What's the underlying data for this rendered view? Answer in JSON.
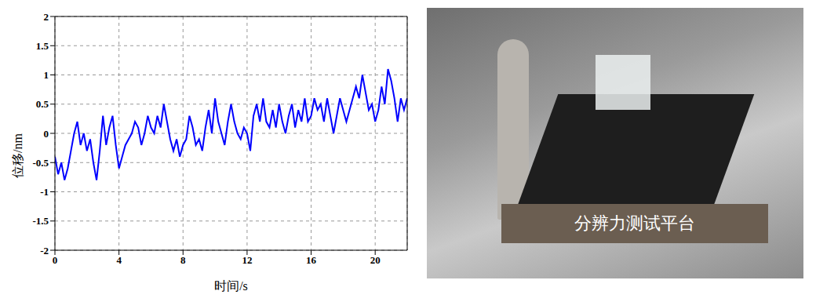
{
  "chart_data": {
    "type": "line",
    "x_label": "时间/s",
    "y_label": "位移/nm",
    "xlim": [
      0,
      22
    ],
    "xticks": [
      0,
      4,
      8,
      12,
      16,
      20
    ],
    "ylim": [
      -2,
      2
    ],
    "yticks": [
      -2,
      -1.5,
      -1,
      -0.5,
      0,
      0.5,
      1,
      1.5,
      2
    ],
    "grid": true,
    "color": "#0000ff",
    "line_style": "solid",
    "x": [
      0,
      0.2,
      0.4,
      0.6,
      0.8,
      1,
      1.2,
      1.4,
      1.6,
      1.8,
      2,
      2.2,
      2.4,
      2.6,
      2.8,
      3,
      3.2,
      3.4,
      3.6,
      3.8,
      4,
      4.2,
      4.4,
      4.6,
      4.8,
      5,
      5.2,
      5.4,
      5.6,
      5.8,
      6,
      6.2,
      6.4,
      6.6,
      6.8,
      7,
      7.2,
      7.4,
      7.6,
      7.8,
      8,
      8.2,
      8.4,
      8.6,
      8.8,
      9,
      9.2,
      9.4,
      9.6,
      9.8,
      10,
      10.2,
      10.4,
      10.6,
      10.8,
      11,
      11.2,
      11.4,
      11.6,
      11.8,
      12,
      12.2,
      12.4,
      12.6,
      12.8,
      13,
      13.2,
      13.4,
      13.6,
      13.8,
      14,
      14.2,
      14.4,
      14.6,
      14.8,
      15,
      15.2,
      15.4,
      15.6,
      15.8,
      16,
      16.2,
      16.4,
      16.6,
      16.8,
      17,
      17.2,
      17.4,
      17.6,
      17.8,
      18,
      18.2,
      18.4,
      18.6,
      18.8,
      19,
      19.2,
      19.4,
      19.6,
      19.8,
      20,
      20.2,
      20.4,
      20.6,
      20.8,
      21,
      21.2,
      21.4,
      21.6,
      21.8,
      22
    ],
    "values": [
      -0.4,
      -0.7,
      -0.5,
      -0.8,
      -0.6,
      -0.3,
      0.0,
      0.2,
      -0.2,
      0.0,
      -0.3,
      -0.1,
      -0.5,
      -0.8,
      -0.3,
      0.3,
      -0.2,
      0.1,
      0.3,
      -0.2,
      -0.6,
      -0.4,
      -0.2,
      -0.1,
      0.0,
      0.2,
      0.1,
      -0.2,
      0.0,
      0.3,
      0.1,
      0.0,
      0.3,
      0.1,
      0.5,
      0.2,
      -0.1,
      -0.3,
      -0.1,
      -0.4,
      -0.2,
      -0.1,
      0.3,
      0.1,
      -0.2,
      -0.1,
      -0.3,
      0.1,
      0.4,
      0.0,
      0.6,
      0.2,
      0.0,
      -0.2,
      0.2,
      0.5,
      0.2,
      0.0,
      -0.1,
      0.1,
      0.0,
      -0.3,
      0.3,
      0.5,
      0.2,
      0.6,
      0.2,
      0.1,
      0.4,
      0.1,
      0.5,
      0.2,
      0.0,
      0.3,
      0.5,
      0.1,
      0.4,
      0.2,
      0.6,
      0.2,
      0.3,
      0.6,
      0.4,
      0.5,
      0.2,
      0.6,
      0.3,
      0.0,
      0.3,
      0.6,
      0.4,
      0.2,
      0.4,
      0.6,
      0.8,
      0.6,
      1.0,
      0.7,
      0.4,
      0.5,
      0.2,
      0.4,
      0.8,
      0.5,
      1.1,
      0.9,
      0.6,
      0.2,
      0.6,
      0.4,
      0.6
    ]
  },
  "photo": {
    "caption": "分辨力测试平台"
  }
}
